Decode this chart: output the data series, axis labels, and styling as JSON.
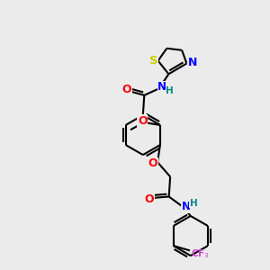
{
  "bg_color": "#ebebeb",
  "bond_color": "#000000",
  "bond_width": 1.5,
  "atom_colors": {
    "O": "#ff0000",
    "N": "#0000ff",
    "S": "#cccc00",
    "F": "#cc44cc",
    "C": "#000000",
    "H": "#008888"
  },
  "font_size": 7.5,
  "figsize": [
    3.0,
    3.0
  ],
  "dpi": 100
}
